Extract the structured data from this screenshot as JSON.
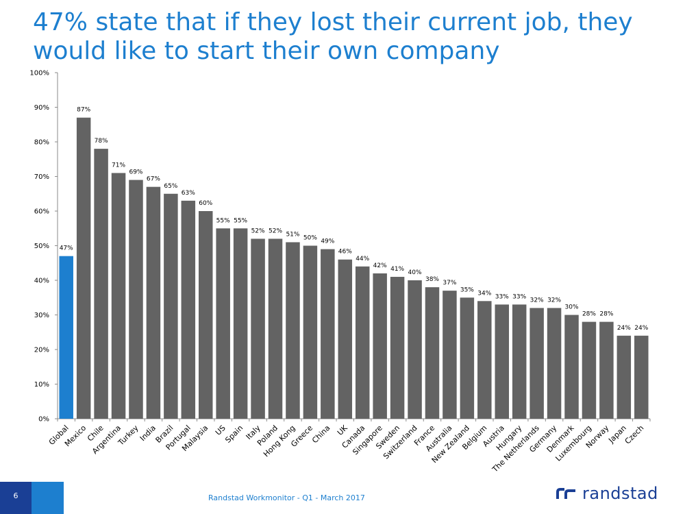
{
  "header": {
    "title": "47% state that if they lost their current job, they would like to start their own company"
  },
  "footer": {
    "page_number": "6",
    "source": "Randstad Workmonitor - Q1 - March 2017",
    "logo_text": "randstad"
  },
  "colors": {
    "highlight": "#1d7fcf",
    "bar": "#636363",
    "title": "#1d7fcf",
    "brand_dark": "#1a3f95"
  },
  "chart_data": {
    "type": "bar",
    "title": "",
    "xlabel": "",
    "ylabel": "",
    "ylim": [
      0,
      100
    ],
    "y_ticks": [
      "0%",
      "10%",
      "20%",
      "30%",
      "40%",
      "50%",
      "60%",
      "70%",
      "80%",
      "90%",
      "100%"
    ],
    "categories": [
      "Global",
      "Mexico",
      "Chile",
      "Argentina",
      "Turkey",
      "India",
      "Brazil",
      "Portugal",
      "Malaysia",
      "US",
      "Spain",
      "Italy",
      "Poland",
      "Hong Kong",
      "Greece",
      "China",
      "UK",
      "Canada",
      "Singapore",
      "Sweden",
      "Switzerland",
      "France",
      "Australia",
      "New Zealand",
      "Belgium",
      "Austria",
      "Hungary",
      "The Netherlands",
      "Germany",
      "Denmark",
      "Luxembourg",
      "Norway",
      "Japan",
      "Czech"
    ],
    "values": [
      47,
      87,
      78,
      71,
      69,
      67,
      65,
      63,
      60,
      55,
      55,
      52,
      52,
      51,
      50,
      49,
      46,
      44,
      42,
      41,
      40,
      38,
      37,
      35,
      34,
      33,
      33,
      32,
      32,
      30,
      28,
      28,
      24,
      24
    ],
    "labels": [
      "47%",
      "87%",
      "78%",
      "71%",
      "69%",
      "67%",
      "65%",
      "63%",
      "60%",
      "55%",
      "55%",
      "52%",
      "52%",
      "51%",
      "50%",
      "49%",
      "46%",
      "44%",
      "42%",
      "41%",
      "40%",
      "38%",
      "37%",
      "35%",
      "34%",
      "33%",
      "33%",
      "32%",
      "32%",
      "30%",
      "28%",
      "28%",
      "24%",
      "24%"
    ],
    "highlight_index": 0,
    "grid": false
  }
}
